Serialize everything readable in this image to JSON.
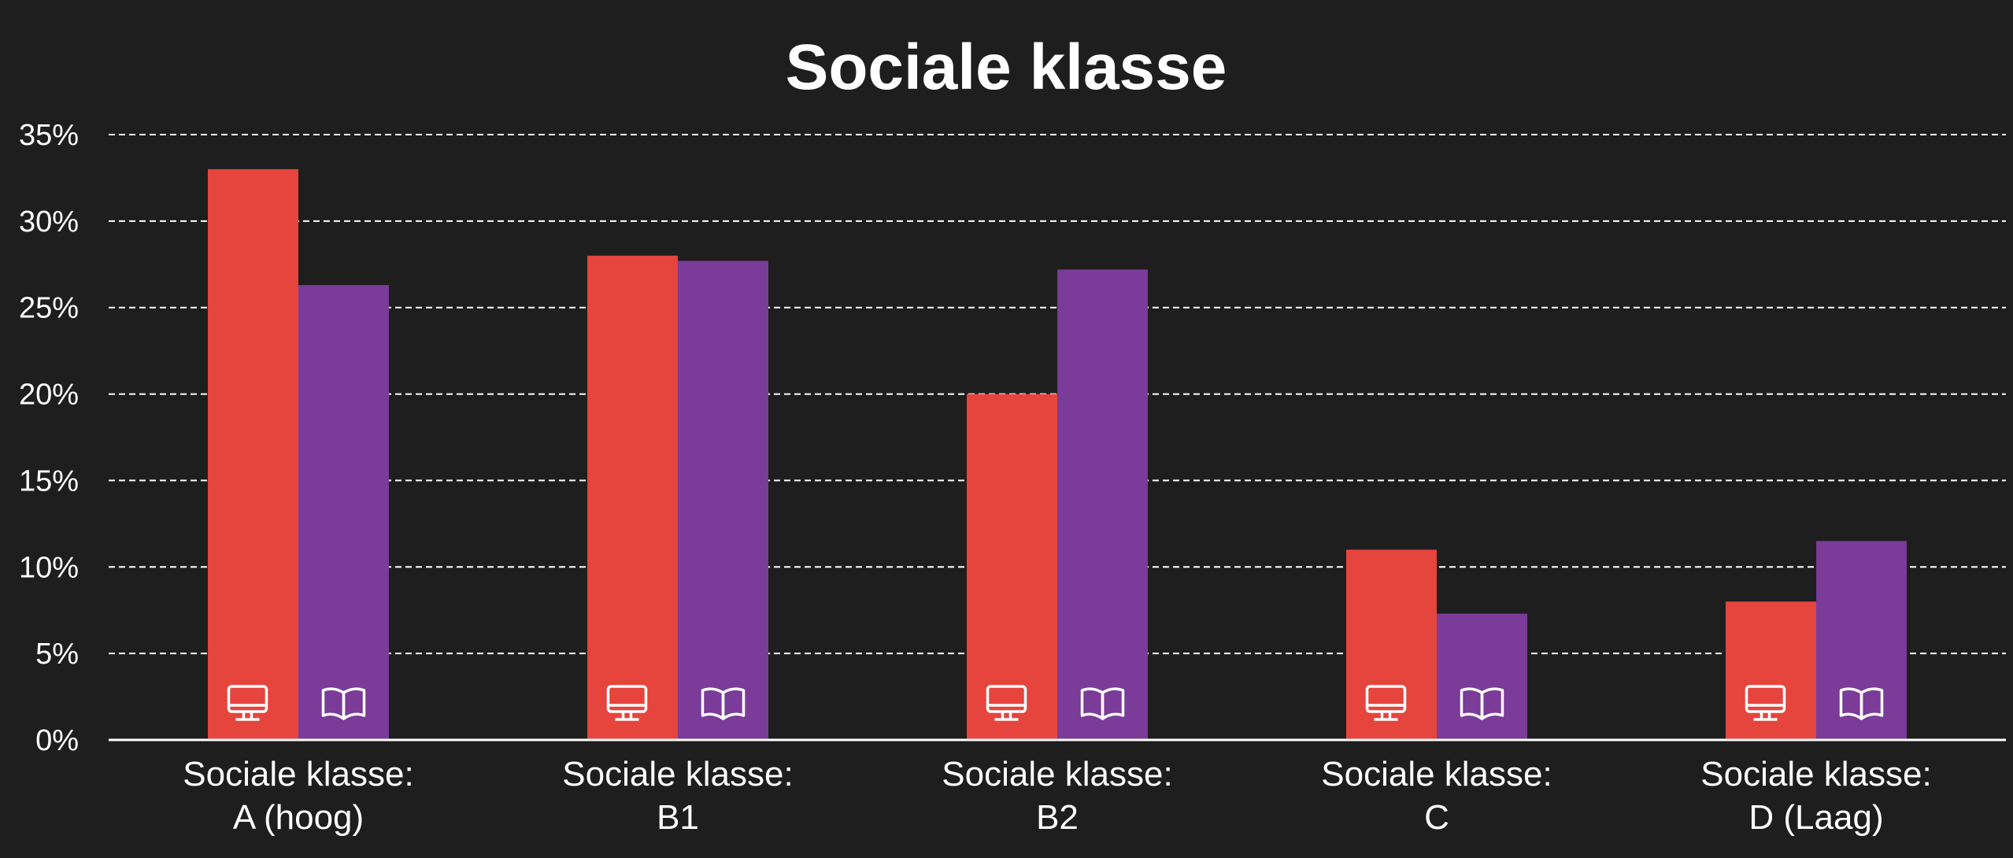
{
  "chart_data": {
    "type": "bar",
    "title": "Sociale klasse",
    "categories": [
      [
        "Sociale klasse:",
        "A (hoog)"
      ],
      [
        "Sociale klasse:",
        "B1"
      ],
      [
        "Sociale klasse:",
        "B2"
      ],
      [
        "Sociale klasse:",
        "C"
      ],
      [
        "Sociale klasse:",
        "D (Laag)"
      ]
    ],
    "series": [
      {
        "icon": "monitor-icon",
        "color": "#e5453d",
        "values": [
          33,
          28,
          20,
          11,
          8
        ]
      },
      {
        "icon": "book-icon",
        "color": "#7b3b98",
        "values": [
          26.3,
          27.7,
          27.2,
          7.3,
          11.5
        ]
      }
    ],
    "ylim": [
      0,
      35
    ],
    "yticks": [
      0,
      5,
      10,
      15,
      20,
      25,
      30,
      35
    ],
    "ytick_labels": [
      "0%",
      "5%",
      "10%",
      "15%",
      "20%",
      "25%",
      "30%",
      "35%"
    ],
    "grid": true,
    "background": "#1e1e1e"
  }
}
